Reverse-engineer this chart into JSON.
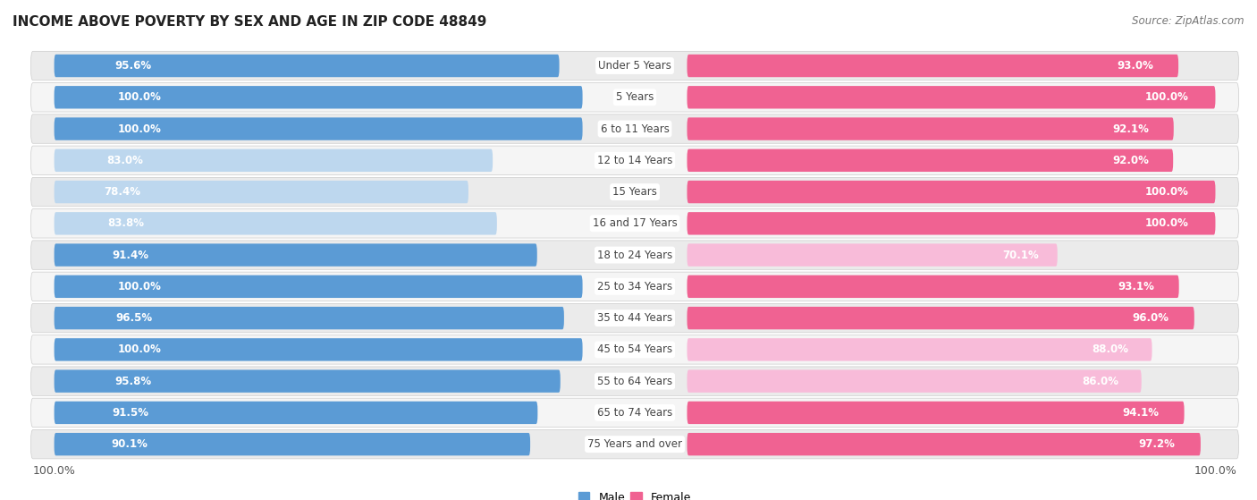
{
  "title": "INCOME ABOVE POVERTY BY SEX AND AGE IN ZIP CODE 48849",
  "source": "Source: ZipAtlas.com",
  "categories": [
    "Under 5 Years",
    "5 Years",
    "6 to 11 Years",
    "12 to 14 Years",
    "15 Years",
    "16 and 17 Years",
    "18 to 24 Years",
    "25 to 34 Years",
    "35 to 44 Years",
    "45 to 54 Years",
    "55 to 64 Years",
    "65 to 74 Years",
    "75 Years and over"
  ],
  "male_values": [
    95.6,
    100.0,
    100.0,
    83.0,
    78.4,
    83.8,
    91.4,
    100.0,
    96.5,
    100.0,
    95.8,
    91.5,
    90.1
  ],
  "female_values": [
    93.0,
    100.0,
    92.1,
    92.0,
    100.0,
    100.0,
    70.1,
    93.1,
    96.0,
    88.0,
    86.0,
    94.1,
    97.2
  ],
  "male_color_full": "#5B9BD5",
  "male_color_light": "#BDD7EE",
  "female_color_full": "#F06292",
  "female_color_light": "#F8BBD9",
  "background_color": "#FFFFFF",
  "row_bg_color": "#E8E8E8",
  "row_bg_light": "#F2F2F2",
  "title_fontsize": 11,
  "label_fontsize": 8.5,
  "category_fontsize": 8.5,
  "source_fontsize": 8.5,
  "legend_fontsize": 9,
  "full_threshold": 90.0,
  "axis_bottom_label": "100.0%"
}
